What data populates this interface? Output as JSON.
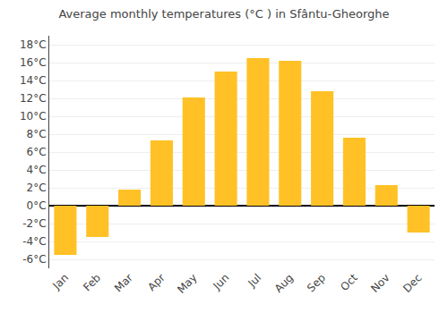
{
  "chart_data": {
    "type": "bar",
    "title": "Average monthly temperatures (°C ) in Sfântu-Gheorghe",
    "categories": [
      "Jan",
      "Feb",
      "Mar",
      "Apr",
      "May",
      "Jun",
      "Jul",
      "Aug",
      "Sep",
      "Oct",
      "Nov",
      "Dec"
    ],
    "values": [
      -5.5,
      -3.5,
      1.8,
      7.3,
      12.1,
      15.0,
      16.5,
      16.2,
      12.8,
      7.6,
      2.3,
      -3.0
    ],
    "color": "#FFC125",
    "ylim": [
      -7,
      19
    ],
    "yticks": [
      {
        "value": -6,
        "label": "-6°C"
      },
      {
        "value": -4,
        "label": "-4°C"
      },
      {
        "value": -2,
        "label": "-2°C"
      },
      {
        "value": 0,
        "label": "0°C"
      },
      {
        "value": 2,
        "label": "2°C"
      },
      {
        "value": 4,
        "label": "4°C"
      },
      {
        "value": 6,
        "label": "6°C"
      },
      {
        "value": 8,
        "label": "8°C"
      },
      {
        "value": 10,
        "label": "10°C"
      },
      {
        "value": 12,
        "label": "12°C"
      },
      {
        "value": 14,
        "label": "14°C"
      },
      {
        "value": 16,
        "label": "16°C"
      },
      {
        "value": 18,
        "label": "18°C"
      }
    ],
    "grid": true
  }
}
